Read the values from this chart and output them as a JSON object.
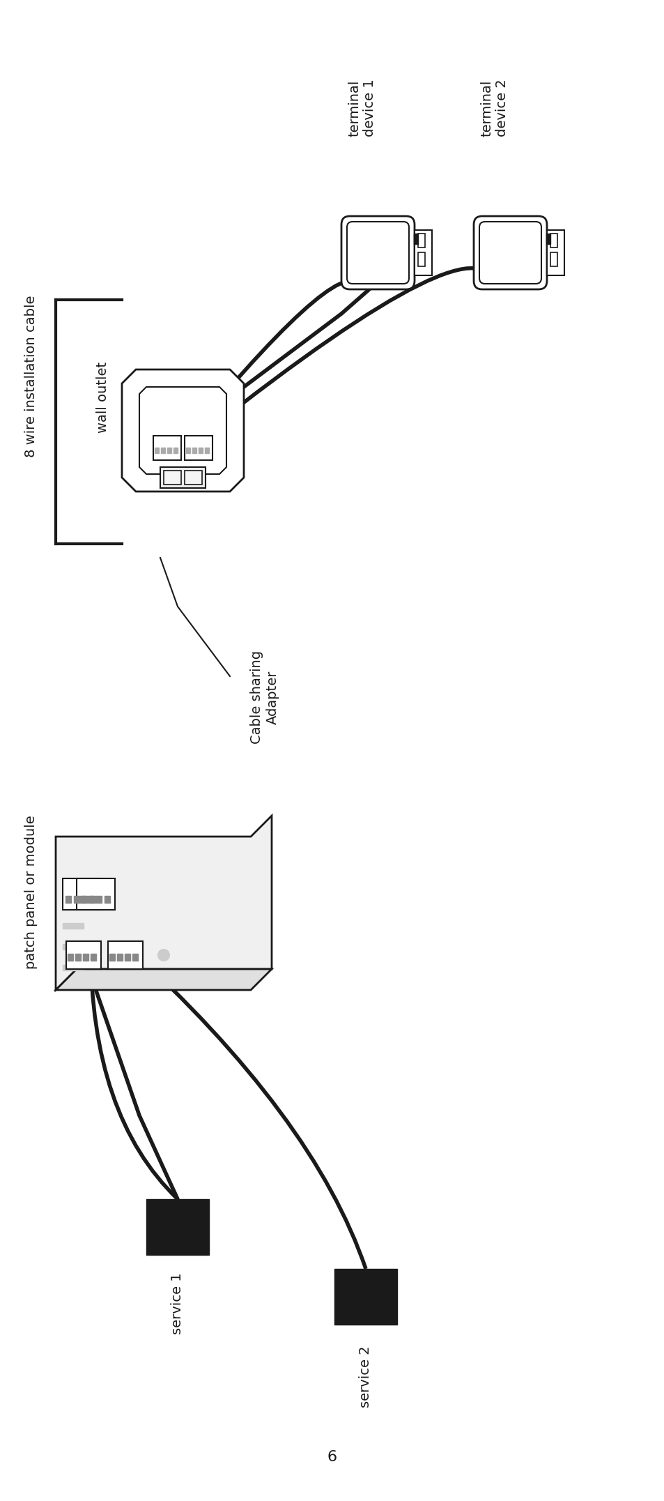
{
  "bg_color": "#ffffff",
  "text_color": "#1a1a1a",
  "line_color": "#1a1a1a",
  "page_number": "6",
  "labels": {
    "eight_wire": "8 wire installation cable",
    "wall_outlet": "wall outlet",
    "terminal1": "terminal\ndevice 1",
    "terminal2": "terminal\ndevice 2",
    "cable_sharing": "Cable sharing\nAdapter",
    "patch_panel": "patch panel or module",
    "service1": "service 1",
    "service2": "service 2"
  },
  "font_size_labels": 14,
  "font_size_page": 16
}
